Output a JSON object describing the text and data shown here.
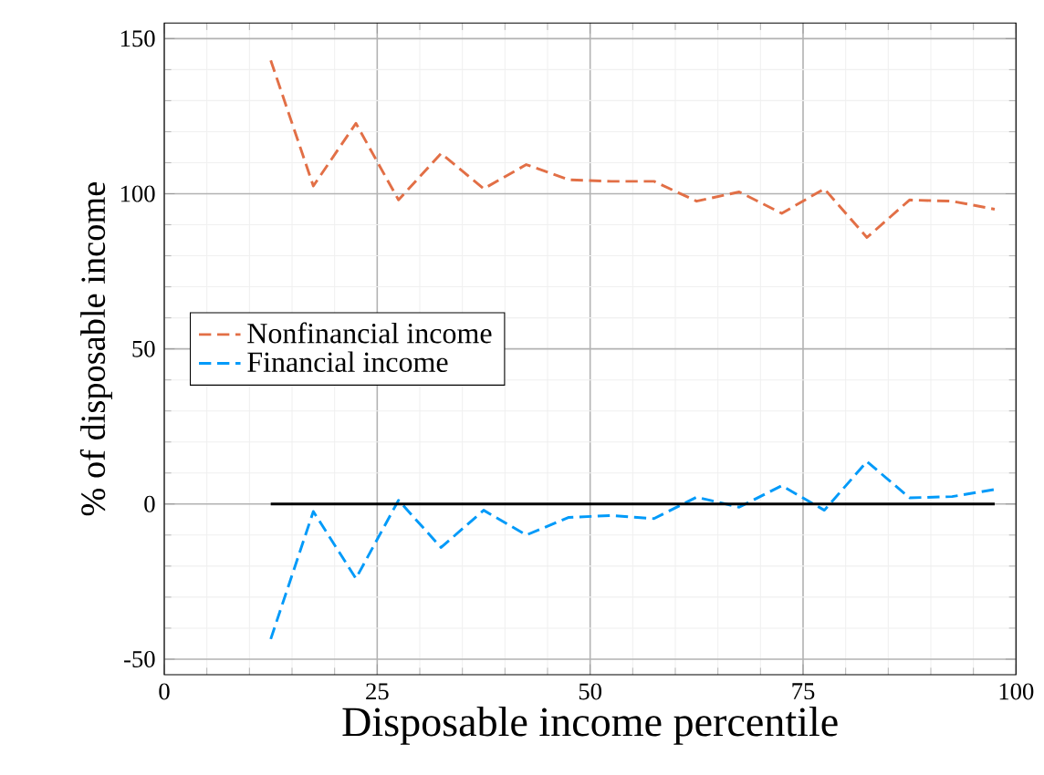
{
  "chart_data": {
    "type": "line",
    "xlabel": "Disposable income percentile",
    "ylabel": "% of disposable income",
    "xlim": [
      0,
      100
    ],
    "ylim": [
      -55,
      155
    ],
    "xticks": [
      0,
      25,
      50,
      75,
      100
    ],
    "yticks": [
      -50,
      0,
      50,
      100,
      150
    ],
    "grid": true,
    "legend": "left",
    "line_style": "dashed",
    "marker": "none",
    "x": [
      12.5,
      17.5,
      22.5,
      27.5,
      32.5,
      37.5,
      42.5,
      47.5,
      52.5,
      57.5,
      62.5,
      67.5,
      72.5,
      77.5,
      82.5,
      87.5,
      92.5,
      97.5
    ],
    "series": [
      {
        "name": "Nonfinancial income",
        "color": "#e26f46",
        "values": [
          143,
          102.5,
          122.7,
          98,
          113,
          101.6,
          109.4,
          104.5,
          104,
          104,
          97.6,
          100.6,
          93.7,
          101.6,
          85.9,
          98,
          97.6,
          95
        ]
      },
      {
        "name": "Financial income",
        "color": "#009af9",
        "values": [
          -43.5,
          -2.4,
          -24,
          1.2,
          -14,
          -2,
          -10,
          -4.3,
          -3.7,
          -4.7,
          2.2,
          -1,
          5.9,
          -2,
          13.7,
          2,
          2.4,
          4.7
        ]
      },
      {
        "color": "#000000",
        "line_style": "solid",
        "values": [
          0,
          0,
          0,
          0,
          0,
          0,
          0,
          0,
          0,
          0,
          0,
          0,
          0,
          0,
          0,
          0,
          0,
          0
        ]
      }
    ]
  }
}
